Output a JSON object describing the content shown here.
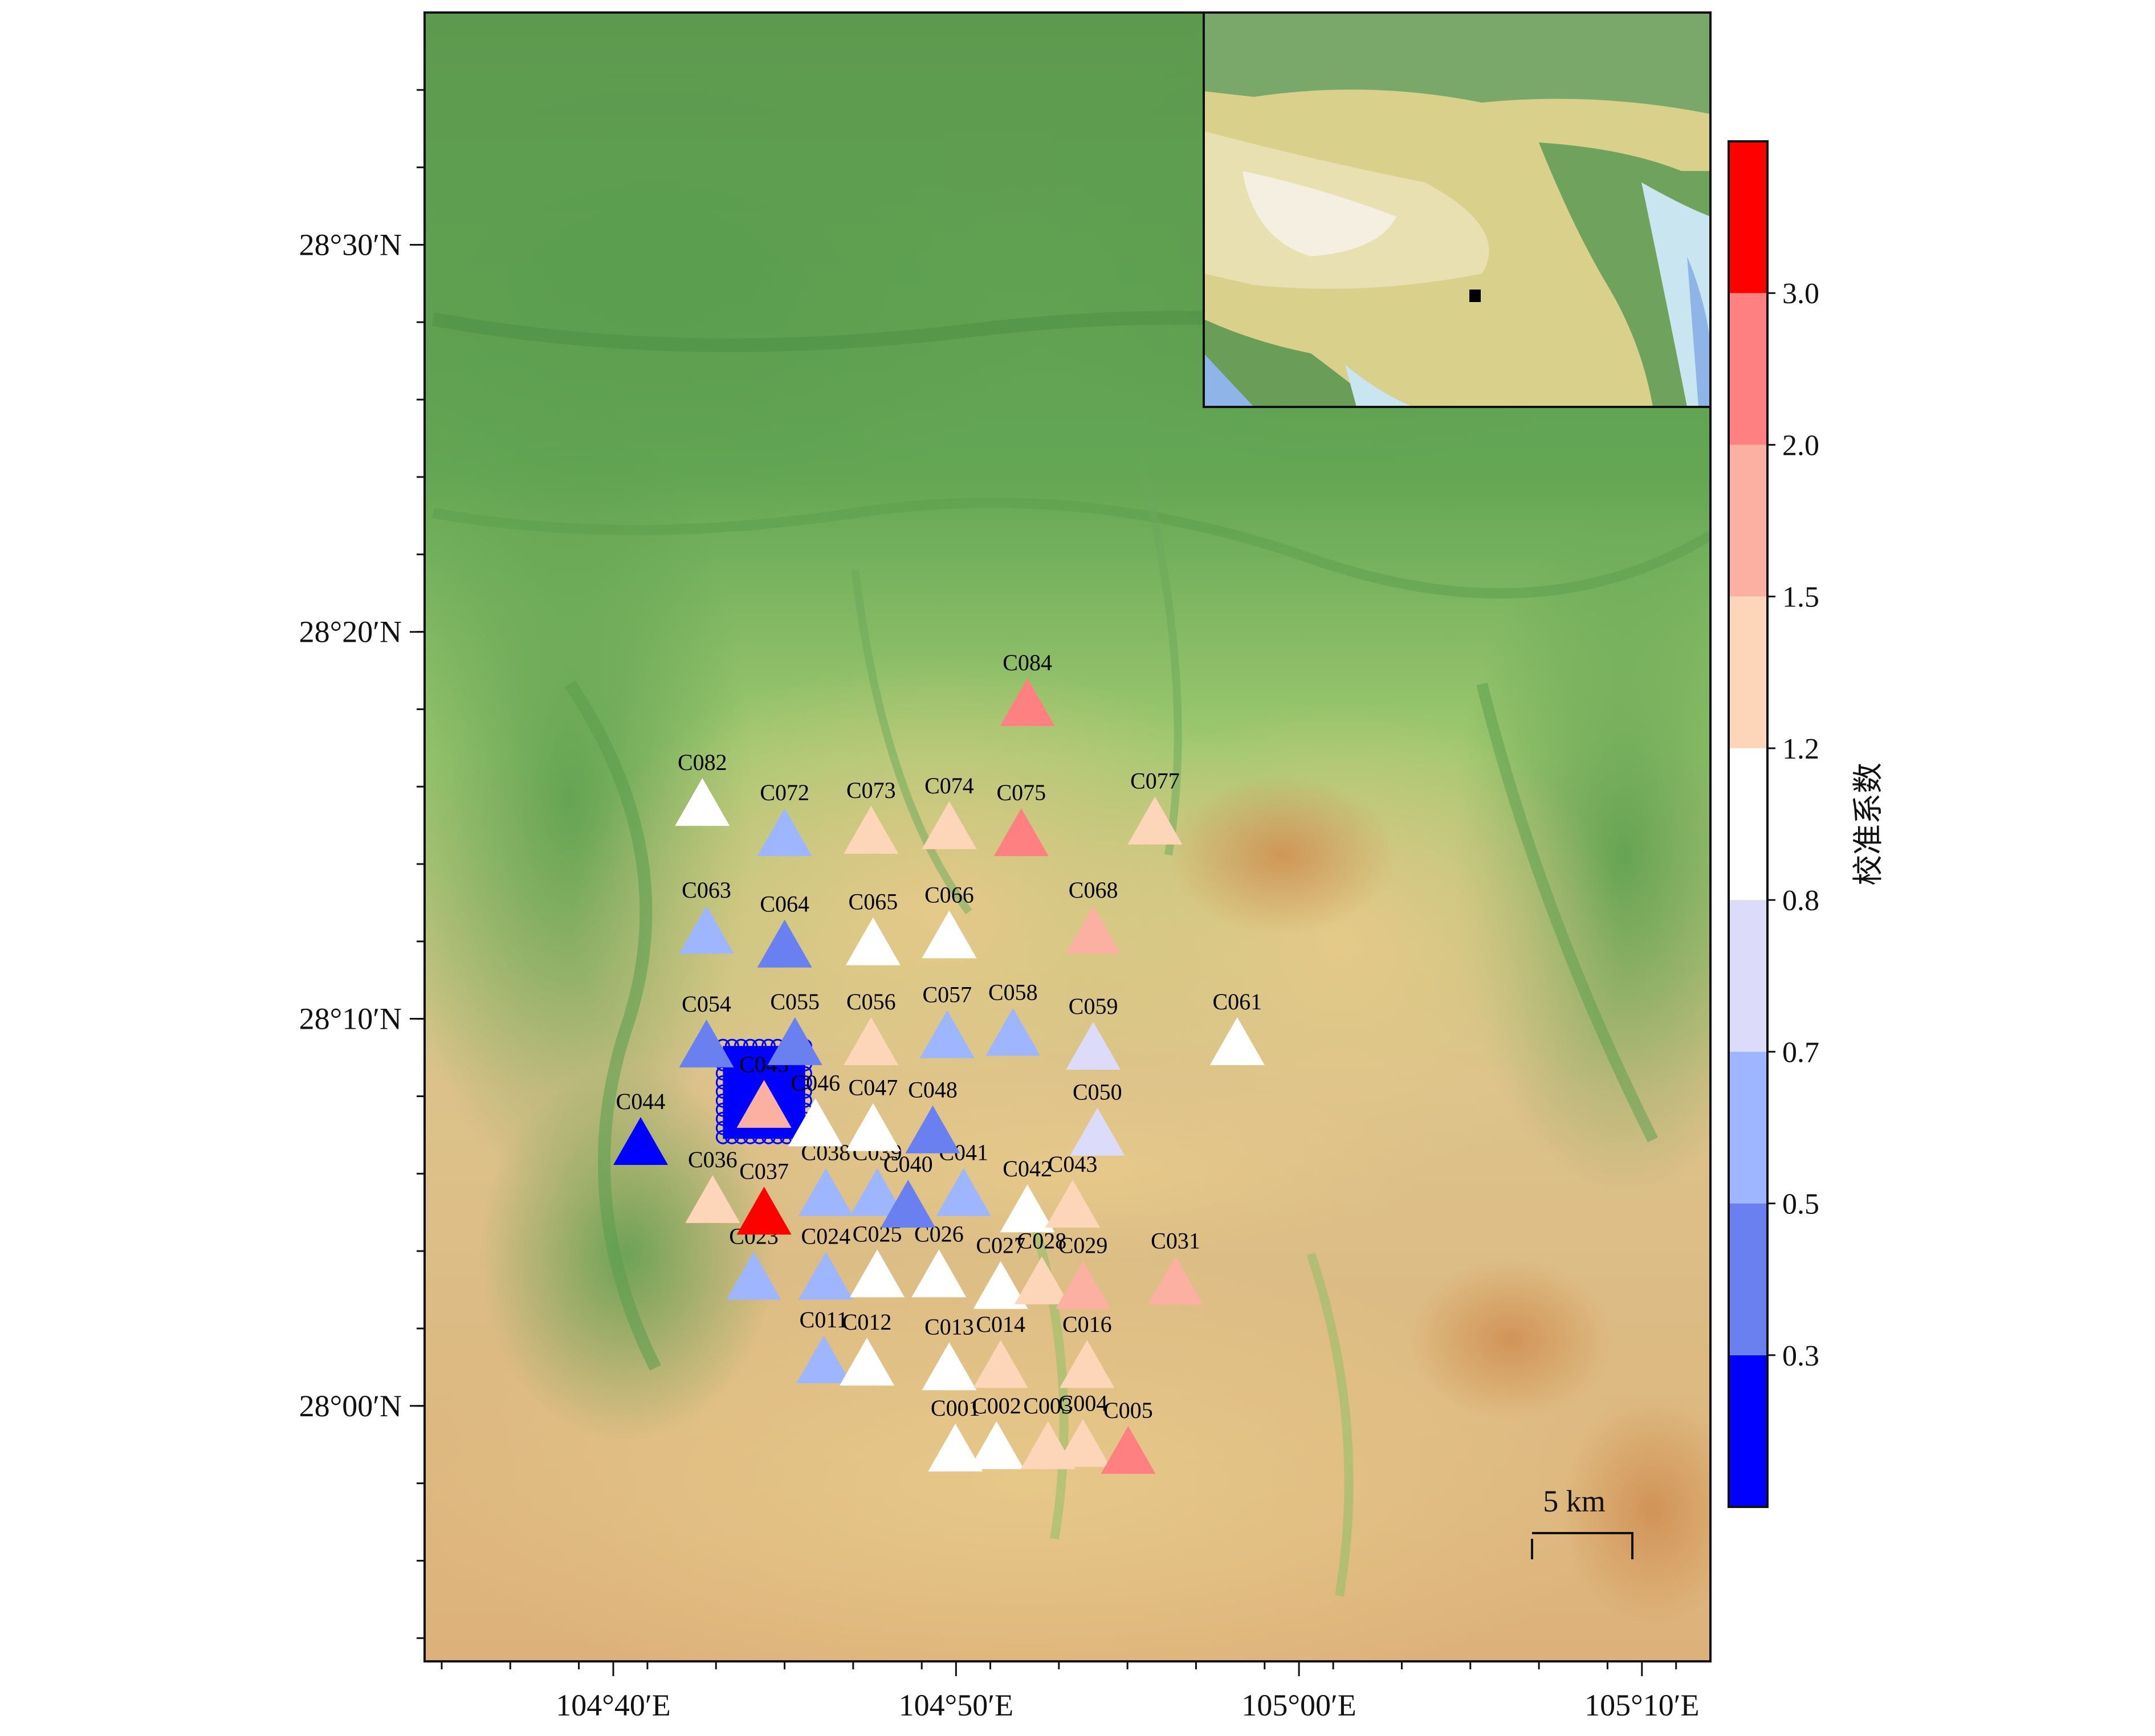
{
  "chart_data": {
    "type": "scatter",
    "title": "",
    "marker": "triangle",
    "x_axis": {
      "range": [
        104.575,
        105.2
      ],
      "ticks": [
        {
          "value": 104.6667,
          "label": "104°40′E"
        },
        {
          "value": 104.8333,
          "label": "104°50′E"
        },
        {
          "value": 105.0,
          "label": "105°00′E"
        },
        {
          "value": 105.1667,
          "label": "105°10′E"
        }
      ]
    },
    "y_axis": {
      "range": [
        27.89,
        28.6
      ],
      "ticks": [
        {
          "value": 28.0,
          "label": "28°00′N"
        },
        {
          "value": 28.1667,
          "label": "28°10′N"
        },
        {
          "value": 28.3333,
          "label": "28°20′N"
        },
        {
          "value": 28.5,
          "label": "28°30′N"
        }
      ]
    },
    "colorbar": {
      "title": "校准系数",
      "boundaries": [
        0.0,
        0.3,
        0.5,
        0.7,
        0.8,
        1.2,
        1.5,
        2.0,
        3.0,
        4.0
      ],
      "tick_labels": [
        "0.3",
        "0.5",
        "0.7",
        "0.8",
        "1.2",
        "1.5",
        "2.0",
        "3.0"
      ],
      "colors": [
        "#0000ff",
        "#6a7ff0",
        "#9db6ff",
        "#dcdcfa",
        "#ffffff",
        "#fdd5b8",
        "#fcb0a2",
        "#ff8080",
        "#ff0000"
      ]
    },
    "scale_bar": {
      "label": "5 km"
    },
    "inset_marker_color": "#000000",
    "cluster": {
      "lon_range": [
        104.72,
        104.76
      ],
      "lat_range": [
        28.115,
        28.155
      ],
      "color": "#0000ff"
    },
    "stations": [
      {
        "id": "C001",
        "lon": 104.833,
        "lat": 27.98,
        "value": 1.0
      },
      {
        "id": "C002",
        "lon": 104.853,
        "lat": 27.981,
        "value": 1.0
      },
      {
        "id": "C003",
        "lon": 104.878,
        "lat": 27.981,
        "value": 1.3
      },
      {
        "id": "C004",
        "lon": 104.895,
        "lat": 27.982,
        "value": 1.3
      },
      {
        "id": "C005",
        "lon": 104.917,
        "lat": 27.979,
        "value": 2.4
      },
      {
        "id": "C011",
        "lon": 104.769,
        "lat": 28.018,
        "value": 0.6
      },
      {
        "id": "C012",
        "lon": 104.79,
        "lat": 28.017,
        "value": 1.0
      },
      {
        "id": "C013",
        "lon": 104.83,
        "lat": 28.015,
        "value": 1.0
      },
      {
        "id": "C014",
        "lon": 104.855,
        "lat": 28.016,
        "value": 1.3
      },
      {
        "id": "C016",
        "lon": 104.897,
        "lat": 28.016,
        "value": 1.3
      },
      {
        "id": "C023",
        "lon": 104.735,
        "lat": 28.054,
        "value": 0.6
      },
      {
        "id": "C024",
        "lon": 104.77,
        "lat": 28.054,
        "value": 0.6
      },
      {
        "id": "C025",
        "lon": 104.795,
        "lat": 28.055,
        "value": 1.0
      },
      {
        "id": "C026",
        "lon": 104.825,
        "lat": 28.055,
        "value": 1.0
      },
      {
        "id": "C027",
        "lon": 104.855,
        "lat": 28.05,
        "value": 1.0
      },
      {
        "id": "C028",
        "lon": 104.875,
        "lat": 28.052,
        "value": 1.3
      },
      {
        "id": "C029",
        "lon": 104.895,
        "lat": 28.05,
        "value": 1.8
      },
      {
        "id": "C031",
        "lon": 104.94,
        "lat": 28.052,
        "value": 1.8
      },
      {
        "id": "C036",
        "lon": 104.715,
        "lat": 28.087,
        "value": 1.3
      },
      {
        "id": "C037",
        "lon": 104.74,
        "lat": 28.082,
        "value": 3.5
      },
      {
        "id": "C038",
        "lon": 104.77,
        "lat": 28.09,
        "value": 0.6
      },
      {
        "id": "C039",
        "lon": 104.795,
        "lat": 28.09,
        "value": 0.6
      },
      {
        "id": "C040",
        "lon": 104.81,
        "lat": 28.085,
        "value": 0.4
      },
      {
        "id": "C041",
        "lon": 104.837,
        "lat": 28.09,
        "value": 0.6
      },
      {
        "id": "C042",
        "lon": 104.868,
        "lat": 28.083,
        "value": 1.0
      },
      {
        "id": "C043",
        "lon": 104.89,
        "lat": 28.085,
        "value": 1.3
      },
      {
        "id": "C044",
        "lon": 104.68,
        "lat": 28.112,
        "value": 0.15
      },
      {
        "id": "C045",
        "lon": 104.74,
        "lat": 28.128,
        "value": 1.8
      },
      {
        "id": "C046",
        "lon": 104.765,
        "lat": 28.12,
        "value": 1.0
      },
      {
        "id": "C047",
        "lon": 104.793,
        "lat": 28.118,
        "value": 1.0
      },
      {
        "id": "C048",
        "lon": 104.822,
        "lat": 28.117,
        "value": 0.4
      },
      {
        "id": "C050",
        "lon": 104.902,
        "lat": 28.116,
        "value": 0.75
      },
      {
        "id": "C054",
        "lon": 104.712,
        "lat": 28.154,
        "value": 0.4
      },
      {
        "id": "C055",
        "lon": 104.755,
        "lat": 28.155,
        "value": 0.4
      },
      {
        "id": "C056",
        "lon": 104.792,
        "lat": 28.155,
        "value": 1.3
      },
      {
        "id": "C057",
        "lon": 104.829,
        "lat": 28.158,
        "value": 0.6
      },
      {
        "id": "C058",
        "lon": 104.861,
        "lat": 28.159,
        "value": 0.6
      },
      {
        "id": "C059",
        "lon": 104.9,
        "lat": 28.153,
        "value": 0.75
      },
      {
        "id": "C061",
        "lon": 104.97,
        "lat": 28.155,
        "value": 1.0
      },
      {
        "id": "C063",
        "lon": 104.712,
        "lat": 28.203,
        "value": 0.6
      },
      {
        "id": "C064",
        "lon": 104.75,
        "lat": 28.197,
        "value": 0.4
      },
      {
        "id": "C065",
        "lon": 104.793,
        "lat": 28.198,
        "value": 1.0
      },
      {
        "id": "C066",
        "lon": 104.83,
        "lat": 28.201,
        "value": 1.0
      },
      {
        "id": "C068",
        "lon": 104.9,
        "lat": 28.203,
        "value": 1.8
      },
      {
        "id": "C072",
        "lon": 104.75,
        "lat": 28.245,
        "value": 0.6
      },
      {
        "id": "C073",
        "lon": 104.792,
        "lat": 28.246,
        "value": 1.3
      },
      {
        "id": "C074",
        "lon": 104.83,
        "lat": 28.248,
        "value": 1.3
      },
      {
        "id": "C075",
        "lon": 104.865,
        "lat": 28.245,
        "value": 2.4
      },
      {
        "id": "C077",
        "lon": 104.93,
        "lat": 28.25,
        "value": 1.3
      },
      {
        "id": "C082",
        "lon": 104.71,
        "lat": 28.258,
        "value": 1.0
      },
      {
        "id": "C084",
        "lon": 104.868,
        "lat": 28.301,
        "value": 2.4
      }
    ]
  }
}
